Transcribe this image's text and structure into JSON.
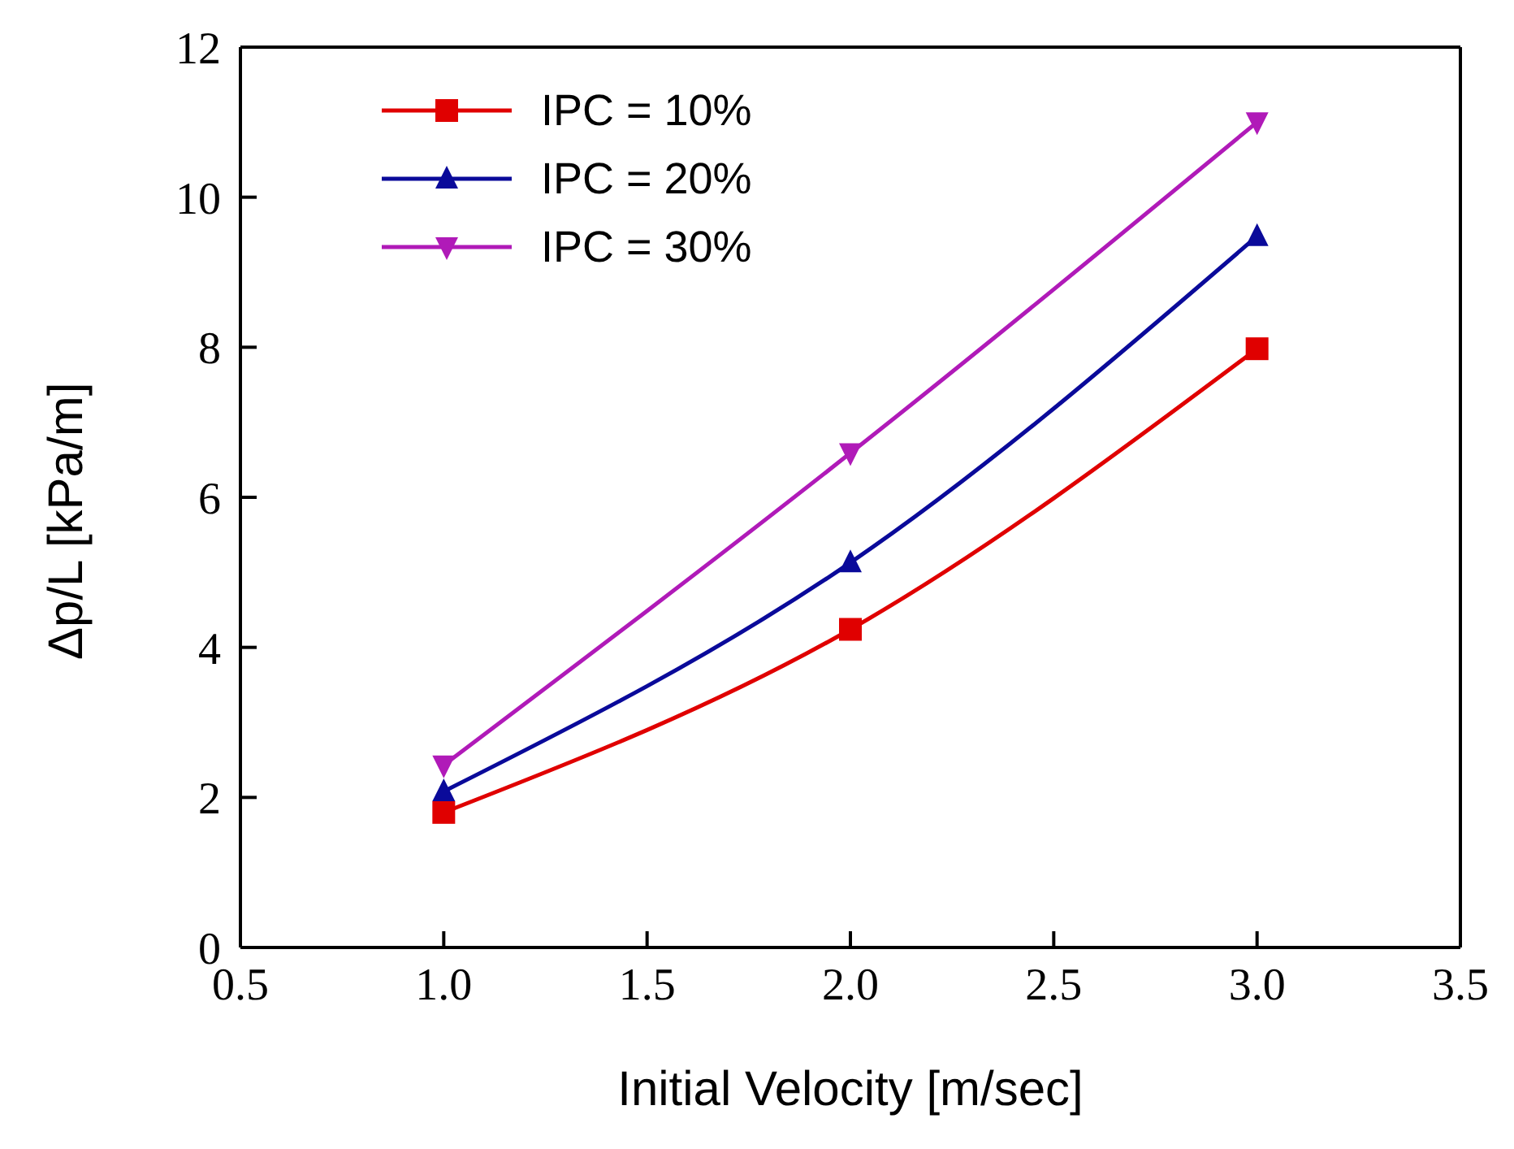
{
  "chart_data": {
    "type": "line",
    "xlabel": "Initial Velocity [m/sec]",
    "ylabel": "Δp/L [kPa/m]",
    "x": [
      1.0,
      2.0,
      3.0
    ],
    "series": [
      {
        "name": "IPC = 10%",
        "color": "#e00000",
        "marker": "square",
        "values": [
          1.8,
          4.24,
          7.98
        ]
      },
      {
        "name": "IPC = 20%",
        "color": "#0a0a9a",
        "marker": "triangle",
        "values": [
          2.08,
          5.13,
          9.48
        ]
      },
      {
        "name": "IPC = 30%",
        "color": "#b01ab8",
        "marker": "triangle-down",
        "values": [
          2.43,
          6.59,
          11.0
        ]
      }
    ],
    "xlim": [
      0.5,
      3.5
    ],
    "xticks": [
      {
        "value": 0.5,
        "label": "0.5"
      },
      {
        "value": 1,
        "label": "1.0"
      },
      {
        "value": 1.5,
        "label": "1.5"
      },
      {
        "value": 2,
        "label": "2.0"
      },
      {
        "value": 2.5,
        "label": "2.5"
      },
      {
        "value": 3,
        "label": "3.0"
      },
      {
        "value": 3.5,
        "label": "3.5"
      }
    ],
    "ylim": [
      0,
      12
    ],
    "yticks": [
      0,
      2,
      4,
      6,
      8,
      10,
      12
    ],
    "grid": false,
    "legend": "top left",
    "line_style": "solid"
  }
}
